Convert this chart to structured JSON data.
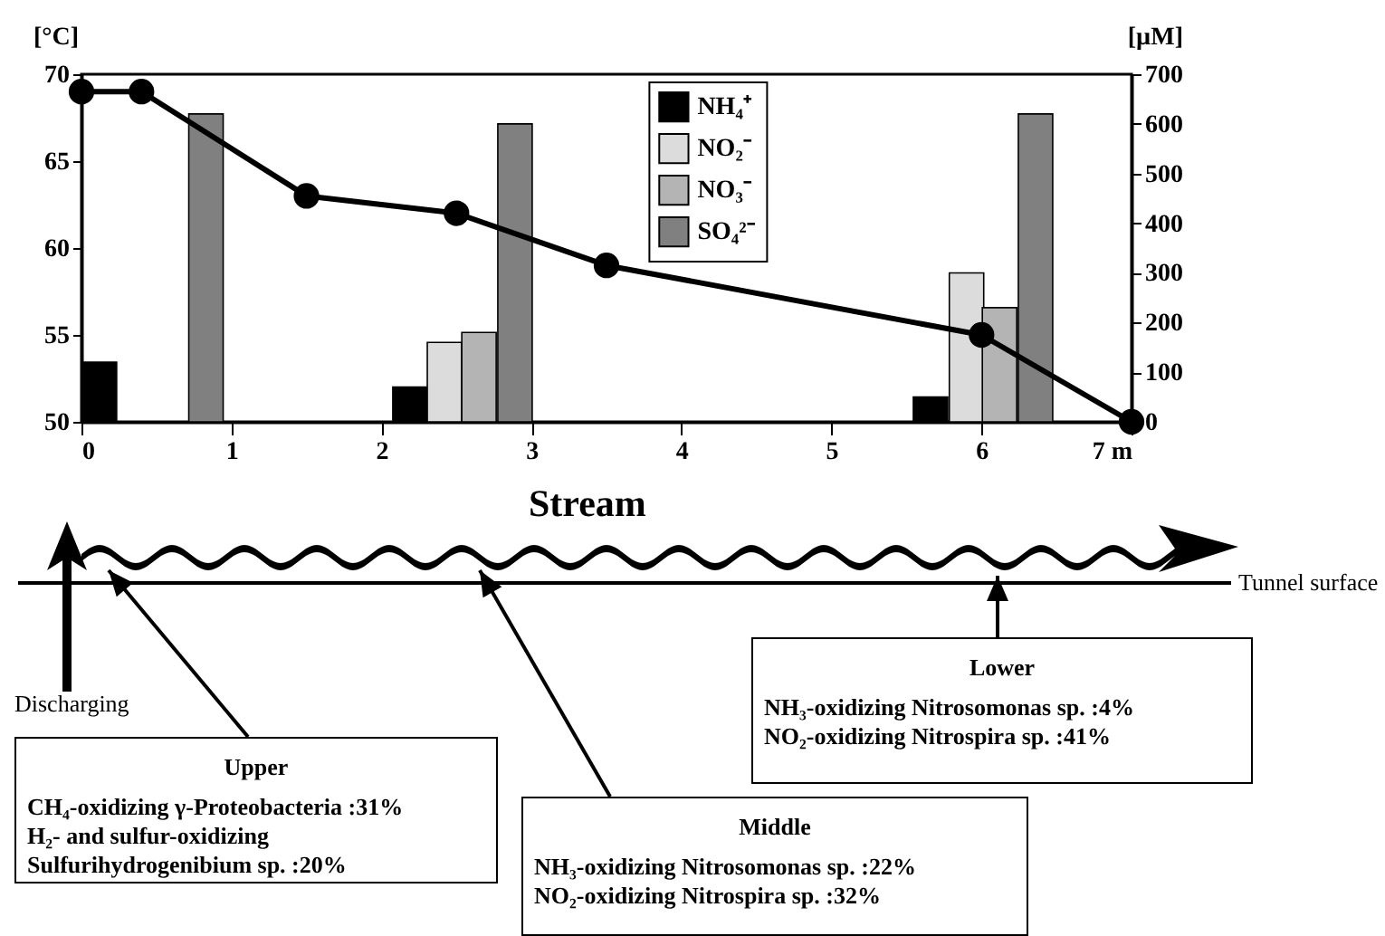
{
  "chart_data": {
    "type": "bar",
    "xlim": [
      0,
      7
    ],
    "xticks": [
      0,
      1,
      2,
      3,
      4,
      5,
      6,
      {
        "value": 7,
        "label": "7 m"
      }
    ],
    "ylim": [
      50,
      70
    ],
    "yticks": [
      50,
      55,
      60,
      65,
      70
    ],
    "ylabel": "[°C]",
    "y2lim": [
      0,
      700
    ],
    "y2ticks": [
      0,
      100,
      200,
      300,
      400,
      500,
      600,
      700
    ],
    "y2label": "[µM]",
    "legend": "top",
    "grid": false,
    "series": [
      {
        "name": "NH₄⁺",
        "axis": "y2",
        "color": "#000000",
        "x": [
          0.12,
          2.19,
          5.66
        ],
        "values": [
          120,
          70,
          50
        ]
      },
      {
        "name": "NO₂⁻",
        "axis": "y2",
        "color": "#dcdcdc",
        "x": [
          2.42,
          5.9
        ],
        "values": [
          160,
          300
        ]
      },
      {
        "name": "NO₃⁻",
        "axis": "y2",
        "color": "#b4b4b4",
        "x": [
          2.65,
          6.12
        ],
        "values": [
          180,
          230
        ]
      },
      {
        "name": "SO₄²⁻",
        "axis": "y2",
        "color": "#808080",
        "x": [
          0.83,
          2.89,
          6.36
        ],
        "values": [
          620,
          600,
          620
        ]
      },
      {
        "type": "line",
        "axis": "y",
        "color": "#000000",
        "marker": "circle",
        "x": [
          0,
          0.4,
          1.5,
          2.5,
          3.5,
          6,
          7
        ],
        "values": [
          69,
          69,
          63,
          62,
          59,
          55,
          50
        ]
      }
    ],
    "annotations": [
      "Stream",
      "Tunnel surface",
      "Discharging",
      "Upper",
      "CH₄-oxidizing γ-Proteobacteria :31%",
      "H₂- and sulfur-oxidizing",
      "Sulfurihydrogenibium sp. :20%",
      "Middle",
      "NH₃-oxidizing Nitrosomonas sp. :22%",
      "NO₂-oxidizing Nitrospira sp. :32%",
      "Lower",
      "NH₃-oxidizing Nitrosomonas sp. :4%",
      "NO₂-oxidizing Nitrospira sp. :41%"
    ]
  }
}
